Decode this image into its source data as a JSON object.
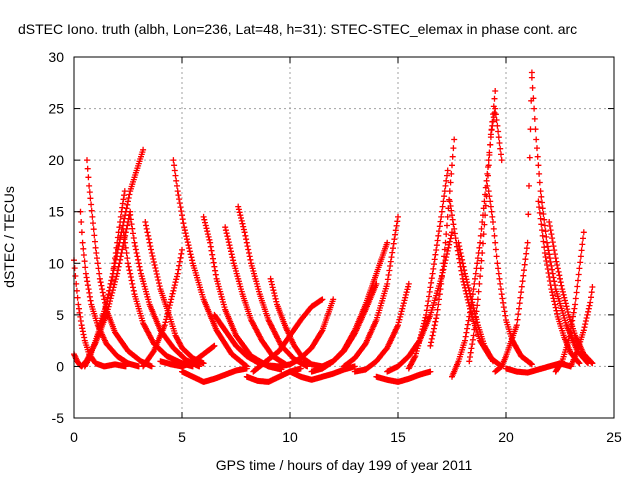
{
  "chart_data": {
    "type": "scatter",
    "title": "dSTEC Iono. truth (albh, Lon=236, Lat=48, h=31): STEC-STEC_elemax in phase cont. arc",
    "xlabel": "GPS time / hours of day 199 of year 2011",
    "ylabel": "dSTEC  / TECUs",
    "xlim": [
      0,
      25
    ],
    "ylim": [
      -5,
      30
    ],
    "xticks": [
      0,
      5,
      10,
      15,
      20,
      25
    ],
    "yticks": [
      -5,
      0,
      5,
      10,
      15,
      20,
      25,
      30
    ],
    "grid": true,
    "marker": "+",
    "marker_color": "#ff0000",
    "series": [
      {
        "x": [
          0.0,
          0.1,
          0.2,
          0.35,
          0.5,
          0.7,
          1.0,
          1.4,
          1.9,
          2.4
        ],
        "values": [
          10.3,
          8.0,
          6.0,
          4.0,
          2.5,
          1.2,
          0.3,
          0.0,
          0.2,
          0.0
        ]
      },
      {
        "x": [
          0.0,
          0.15,
          0.25,
          0.35,
          0.6,
          1.0,
          1.5,
          2.0,
          2.6
        ],
        "values": [
          1.2,
          0.5,
          0.2,
          0.0,
          0.6,
          2.3,
          5.0,
          9.0,
          15.0
        ]
      },
      {
        "x": [
          0.3,
          0.4,
          0.55,
          0.8,
          1.1,
          1.5,
          2.0,
          2.5,
          3.0
        ],
        "values": [
          15.0,
          12.0,
          9.0,
          6.0,
          4.0,
          2.2,
          1.0,
          0.3,
          0.0
        ]
      },
      {
        "x": [
          0.5,
          0.7,
          1.0,
          1.4,
          1.8,
          2.2,
          2.6,
          3.2
        ],
        "values": [
          0.0,
          0.8,
          2.5,
          5.0,
          9.0,
          13.0,
          17.0,
          21.0
        ]
      },
      {
        "x": [
          0.6,
          0.7,
          0.85,
          1.0,
          1.2,
          1.5,
          1.9,
          2.5,
          3.1,
          3.6
        ],
        "values": [
          20.0,
          17.5,
          14.5,
          11.5,
          8.5,
          5.5,
          3.3,
          1.5,
          0.5,
          0.0
        ]
      },
      {
        "x": [
          1.2,
          1.5,
          1.8,
          2.0,
          2.2,
          2.35
        ],
        "values": [
          4.0,
          6.0,
          9.0,
          12.0,
          15.0,
          17.0
        ]
      },
      {
        "x": [
          2.3,
          2.5,
          2.8,
          3.2,
          3.7,
          4.3,
          5.0,
          5.5
        ],
        "values": [
          13.0,
          10.0,
          7.0,
          4.2,
          2.2,
          1.0,
          0.3,
          0.0
        ]
      },
      {
        "x": [
          2.6,
          2.8,
          3.1,
          3.5,
          4.0,
          4.6,
          5.2,
          5.8
        ],
        "values": [
          14.7,
          12.0,
          9.0,
          6.0,
          3.5,
          1.8,
          0.6,
          0.0
        ]
      },
      {
        "x": [
          3.3,
          3.6,
          4.0,
          4.4,
          4.7,
          5.0,
          5.5,
          6.0
        ],
        "values": [
          14.0,
          11.0,
          7.5,
          5.0,
          3.0,
          1.8,
          0.8,
          0.3
        ]
      },
      {
        "x": [
          3.2,
          3.7,
          4.2,
          4.5,
          4.8,
          5.0
        ],
        "values": [
          0.0,
          1.5,
          4.0,
          6.5,
          9.0,
          11.3
        ]
      },
      {
        "x": [
          4.6,
          4.8,
          5.1,
          5.5,
          6.0,
          6.6,
          7.3,
          8.0
        ],
        "values": [
          20.0,
          17.0,
          13.5,
          10.0,
          6.5,
          3.5,
          1.2,
          0.0
        ]
      },
      {
        "x": [
          4.0,
          4.5,
          5.0,
          5.5,
          6.0,
          6.5
        ],
        "values": [
          0.5,
          0.2,
          0.0,
          0.4,
          1.2,
          2.0
        ]
      },
      {
        "x": [
          5.0,
          5.5,
          6.0,
          6.5,
          7.0,
          7.5,
          8.0
        ],
        "values": [
          -0.5,
          -1.0,
          -1.5,
          -1.2,
          -0.8,
          -0.4,
          -0.2
        ]
      },
      {
        "x": [
          6.0,
          6.3,
          6.6,
          7.0,
          7.5,
          8.2,
          9.0,
          9.6
        ],
        "values": [
          14.5,
          12.0,
          8.5,
          5.5,
          3.0,
          1.0,
          0.0,
          -0.3
        ]
      },
      {
        "x": [
          6.5,
          7.0,
          7.5,
          8.0,
          8.5,
          9.0,
          9.5
        ],
        "values": [
          5.0,
          3.5,
          2.0,
          1.0,
          0.4,
          0.1,
          0.0
        ]
      },
      {
        "x": [
          7.0,
          7.4,
          7.8,
          8.2,
          8.7,
          9.2,
          9.8
        ],
        "values": [
          13.5,
          10.0,
          7.0,
          4.5,
          2.5,
          1.0,
          0.2
        ]
      },
      {
        "x": [
          7.6,
          7.9,
          8.2,
          8.6,
          9.0,
          9.6,
          10.2,
          10.8
        ],
        "values": [
          15.5,
          13.0,
          10.0,
          7.0,
          4.5,
          2.0,
          0.7,
          0.0
        ]
      },
      {
        "x": [
          8.0,
          8.5,
          9.0,
          9.5,
          10.0,
          10.5
        ],
        "values": [
          -1.0,
          -1.4,
          -1.5,
          -1.0,
          -0.5,
          -0.2
        ]
      },
      {
        "x": [
          9.1,
          9.4,
          9.8,
          10.2,
          10.6,
          11.0,
          11.5
        ],
        "values": [
          8.5,
          6.0,
          3.8,
          2.0,
          0.8,
          0.2,
          0.0
        ]
      },
      {
        "x": [
          8.3,
          8.9,
          9.5,
          10.0,
          10.5,
          11.0,
          11.5
        ],
        "values": [
          -0.5,
          0.5,
          1.5,
          3.0,
          4.5,
          5.8,
          6.5
        ]
      },
      {
        "x": [
          9.5,
          10.0,
          10.5,
          11.0,
          11.5,
          12.0
        ],
        "values": [
          0.0,
          0.2,
          0.8,
          1.8,
          3.5,
          6.5
        ]
      },
      {
        "x": [
          10.0,
          10.5,
          11.0,
          11.5,
          12.0,
          12.5,
          13.0
        ],
        "values": [
          -0.5,
          -1.0,
          -1.3,
          -1.0,
          -0.7,
          -0.3,
          0.0
        ]
      },
      {
        "x": [
          11.0,
          11.5,
          12.0,
          12.5,
          13.0,
          13.5,
          14.0
        ],
        "values": [
          -0.5,
          -0.2,
          0.5,
          1.5,
          3.2,
          5.5,
          8.0
        ]
      },
      {
        "x": [
          11.5,
          12.0,
          12.5,
          13.0,
          13.5,
          14.0,
          14.5
        ],
        "values": [
          0.0,
          0.5,
          1.6,
          3.5,
          6.0,
          9.0,
          12.0
        ]
      },
      {
        "x": [
          13.0,
          13.5,
          14.0,
          14.5,
          15.0,
          15.5
        ],
        "values": [
          -0.5,
          -0.3,
          0.5,
          1.8,
          4.0,
          8.0
        ]
      },
      {
        "x": [
          12.5,
          13.0,
          13.5,
          14.0,
          14.5,
          15.0
        ],
        "values": [
          0.0,
          0.8,
          2.2,
          4.5,
          8.0,
          14.5
        ]
      },
      {
        "x": [
          14.0,
          14.5,
          15.0,
          15.5,
          16.0,
          16.5
        ],
        "values": [
          -1.0,
          -1.3,
          -1.5,
          -1.2,
          -0.8,
          -0.5
        ]
      },
      {
        "x": [
          14.5,
          15.0,
          15.5,
          16.0,
          16.5,
          17.0,
          17.5
        ],
        "values": [
          -0.5,
          0.0,
          1.0,
          2.5,
          5.0,
          8.5,
          13.0
        ]
      },
      {
        "x": [
          15.5,
          15.8,
          16.0,
          16.3,
          16.6,
          17.0,
          17.3
        ],
        "values": [
          -0.2,
          1.0,
          2.5,
          5.0,
          9.0,
          14.5,
          19.0
        ]
      },
      {
        "x": [
          16.5,
          16.8,
          17.0,
          17.2,
          17.4,
          17.6
        ],
        "values": [
          2.0,
          5.0,
          8.0,
          12.0,
          17.0,
          22.0
        ]
      },
      {
        "x": [
          17.4,
          17.7,
          18.0,
          18.4,
          18.8,
          19.3,
          19.8
        ],
        "values": [
          16.0,
          12.0,
          8.5,
          5.0,
          2.5,
          0.8,
          0.0
        ]
      },
      {
        "x": [
          17.8,
          18.1,
          18.4,
          18.7,
          19.0,
          19.4
        ],
        "values": [
          12.0,
          9.0,
          6.5,
          4.0,
          2.0,
          0.5
        ]
      },
      {
        "x": [
          17.5,
          17.8,
          18.1,
          18.4,
          18.8,
          19.2,
          19.5
        ],
        "values": [
          -1.0,
          0.5,
          2.5,
          6.0,
          12.0,
          20.0,
          26.7
        ]
      },
      {
        "x": [
          18.3,
          18.5,
          18.7,
          18.9,
          19.1,
          19.3,
          19.5,
          19.8
        ],
        "values": [
          0.5,
          3.0,
          6.5,
          11.0,
          16.5,
          22.5,
          25.0,
          20.0
        ]
      },
      {
        "x": [
          19.2,
          19.4,
          19.6,
          19.8,
          20.0,
          20.3,
          20.7,
          21.2
        ],
        "values": [
          17.0,
          14.0,
          10.0,
          7.0,
          4.5,
          2.5,
          1.0,
          0.2
        ]
      },
      {
        "x": [
          19.5,
          19.8,
          20.0,
          20.5,
          21.0,
          21.2
        ],
        "values": [
          -0.5,
          0.0,
          1.0,
          4.0,
          12.0,
          28.5
        ]
      },
      {
        "x": [
          20.0,
          20.5,
          21.0,
          21.5,
          22.0,
          22.5,
          23.0
        ],
        "values": [
          -0.2,
          -0.5,
          -0.6,
          -0.3,
          0.0,
          0.3,
          0.0
        ]
      },
      {
        "x": [
          21.2,
          21.4,
          21.6,
          21.9,
          22.3,
          22.8,
          23.3,
          23.8
        ],
        "values": [
          28.0,
          22.0,
          17.0,
          12.0,
          7.5,
          4.0,
          1.5,
          0.3
        ]
      },
      {
        "x": [
          21.5,
          21.8,
          22.1,
          22.4,
          22.7,
          23.0,
          23.4
        ],
        "values": [
          16.0,
          11.0,
          7.5,
          4.8,
          2.8,
          1.3,
          0.3
        ]
      },
      {
        "x": [
          22.0,
          22.3,
          22.6,
          22.9,
          23.2,
          23.6,
          24.0
        ],
        "values": [
          14.0,
          10.5,
          7.5,
          5.0,
          3.0,
          1.2,
          0.3
        ]
      },
      {
        "x": [
          22.3,
          22.6,
          22.9,
          23.2,
          23.4,
          23.6
        ],
        "values": [
          -0.5,
          0.5,
          2.5,
          6.0,
          9.5,
          13.0
        ]
      },
      {
        "x": [
          23.0,
          23.3,
          23.6,
          23.9,
          24.0
        ],
        "values": [
          0.0,
          1.5,
          3.5,
          6.2,
          7.7
        ]
      }
    ]
  }
}
